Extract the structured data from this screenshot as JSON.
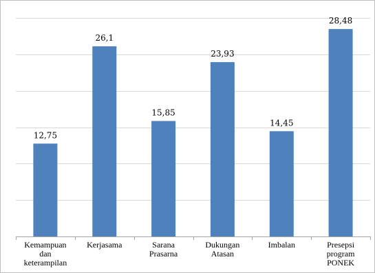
{
  "chart_data": {
    "type": "bar",
    "categories": [
      [
        "Kemampuan",
        "dan",
        "keterampilan"
      ],
      [
        "Kerjasama"
      ],
      [
        "Sarana",
        "Prasarna"
      ],
      [
        "Dukungan",
        "Atasan"
      ],
      [
        "Imbalan"
      ],
      [
        "Presepsi",
        "program",
        "PONEK"
      ]
    ],
    "values": [
      12.75,
      26.1,
      15.85,
      23.93,
      14.45,
      28.48
    ],
    "value_labels": [
      "12,75",
      "26,1",
      "15,85",
      "23,93",
      "14,45",
      "28,48"
    ],
    "ylim": [
      0,
      30
    ],
    "grid": true,
    "bar_color": "#4f81bd",
    "title": "",
    "xlabel": "",
    "ylabel": ""
  }
}
